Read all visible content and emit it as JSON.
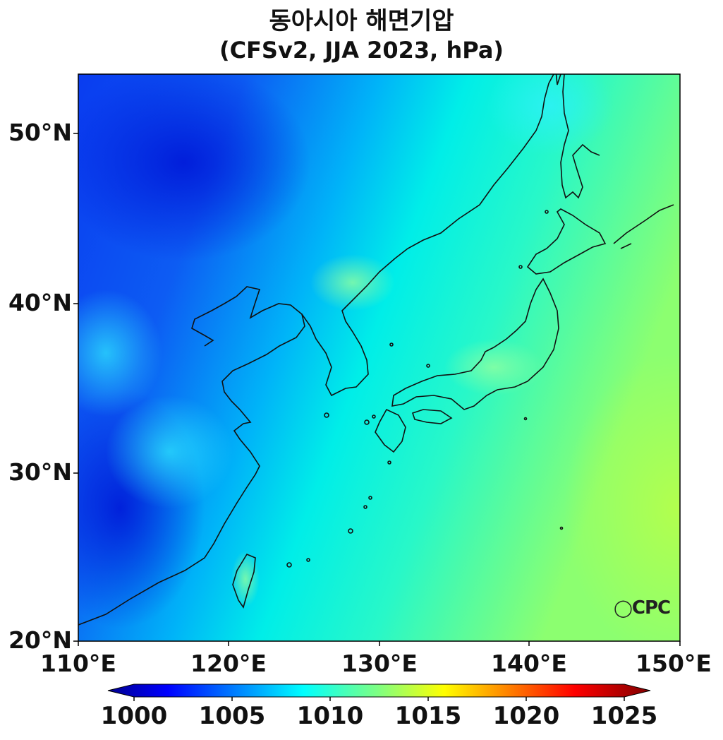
{
  "title": {
    "line1": "동아시아 해면기압",
    "line2": "(CFSv2, JJA 2023, hPa)"
  },
  "axes": {
    "lat_ticks": [
      "50°N",
      "40°N",
      "30°N",
      "20°N"
    ],
    "lon_ticks": [
      "110°E",
      "120°E",
      "130°E",
      "140°E",
      "150°E"
    ],
    "lon_range": [
      110,
      150
    ],
    "lat_range": [
      20,
      53.5
    ]
  },
  "colorbar": {
    "ticks": [
      "1000",
      "1005",
      "1010",
      "1015",
      "1020",
      "1025"
    ],
    "range": [
      1000,
      1025
    ],
    "extend": "both",
    "colormap": "jet"
  },
  "logo": "CPC",
  "colors": {
    "low": "#0022e0",
    "mid": "#00f0e8",
    "high": "#b0ff50"
  }
}
